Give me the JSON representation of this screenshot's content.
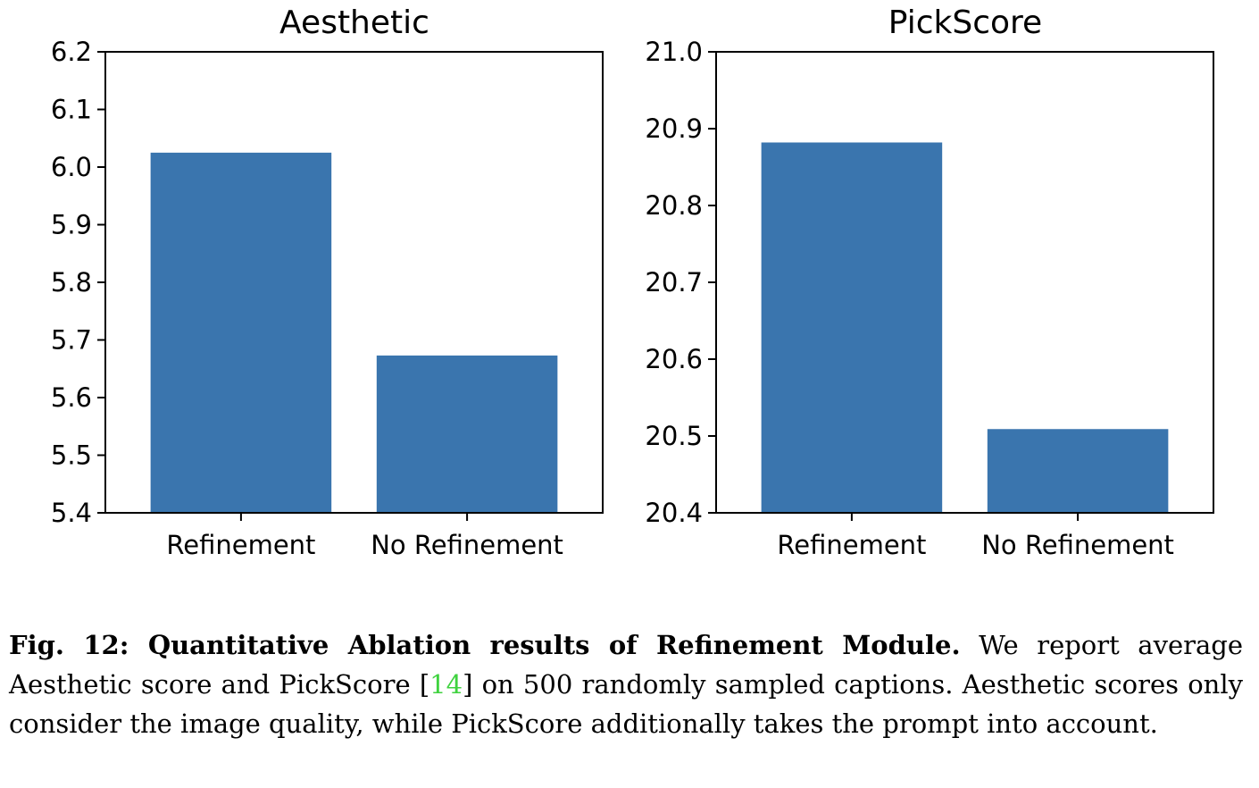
{
  "chart_data": [
    {
      "type": "bar",
      "title": "Aesthetic",
      "categories": [
        "Refinement",
        "No Refinement"
      ],
      "values": [
        6.025,
        5.673
      ],
      "ylim": [
        5.4,
        6.2
      ],
      "yticks": [
        "5.4",
        "5.5",
        "5.6",
        "5.7",
        "5.8",
        "5.9",
        "6.0",
        "6.1",
        "6.2"
      ],
      "xlabel": "",
      "ylabel": "",
      "color": "#3a75ae",
      "grid": false
    },
    {
      "type": "bar",
      "title": "PickScore",
      "categories": [
        "Refinement",
        "No Refinement"
      ],
      "values": [
        20.882,
        20.509
      ],
      "ylim": [
        20.4,
        21.0
      ],
      "yticks": [
        "20.4",
        "20.5",
        "20.6",
        "20.7",
        "20.8",
        "20.9",
        "21.0"
      ],
      "xlabel": "",
      "ylabel": "",
      "color": "#3a75ae",
      "grid": false
    }
  ],
  "caption": {
    "lead": "Fig. 12: Quantitative Ablation results of Refinement Module.",
    "text_before_cite": " We report average Aesthetic score and PickScore [",
    "cite": "14",
    "text_after_cite": "] on 500 randomly sampled captions. Aesthetic scores only consider the image quality, while PickScore additionally takes the prompt into account."
  }
}
